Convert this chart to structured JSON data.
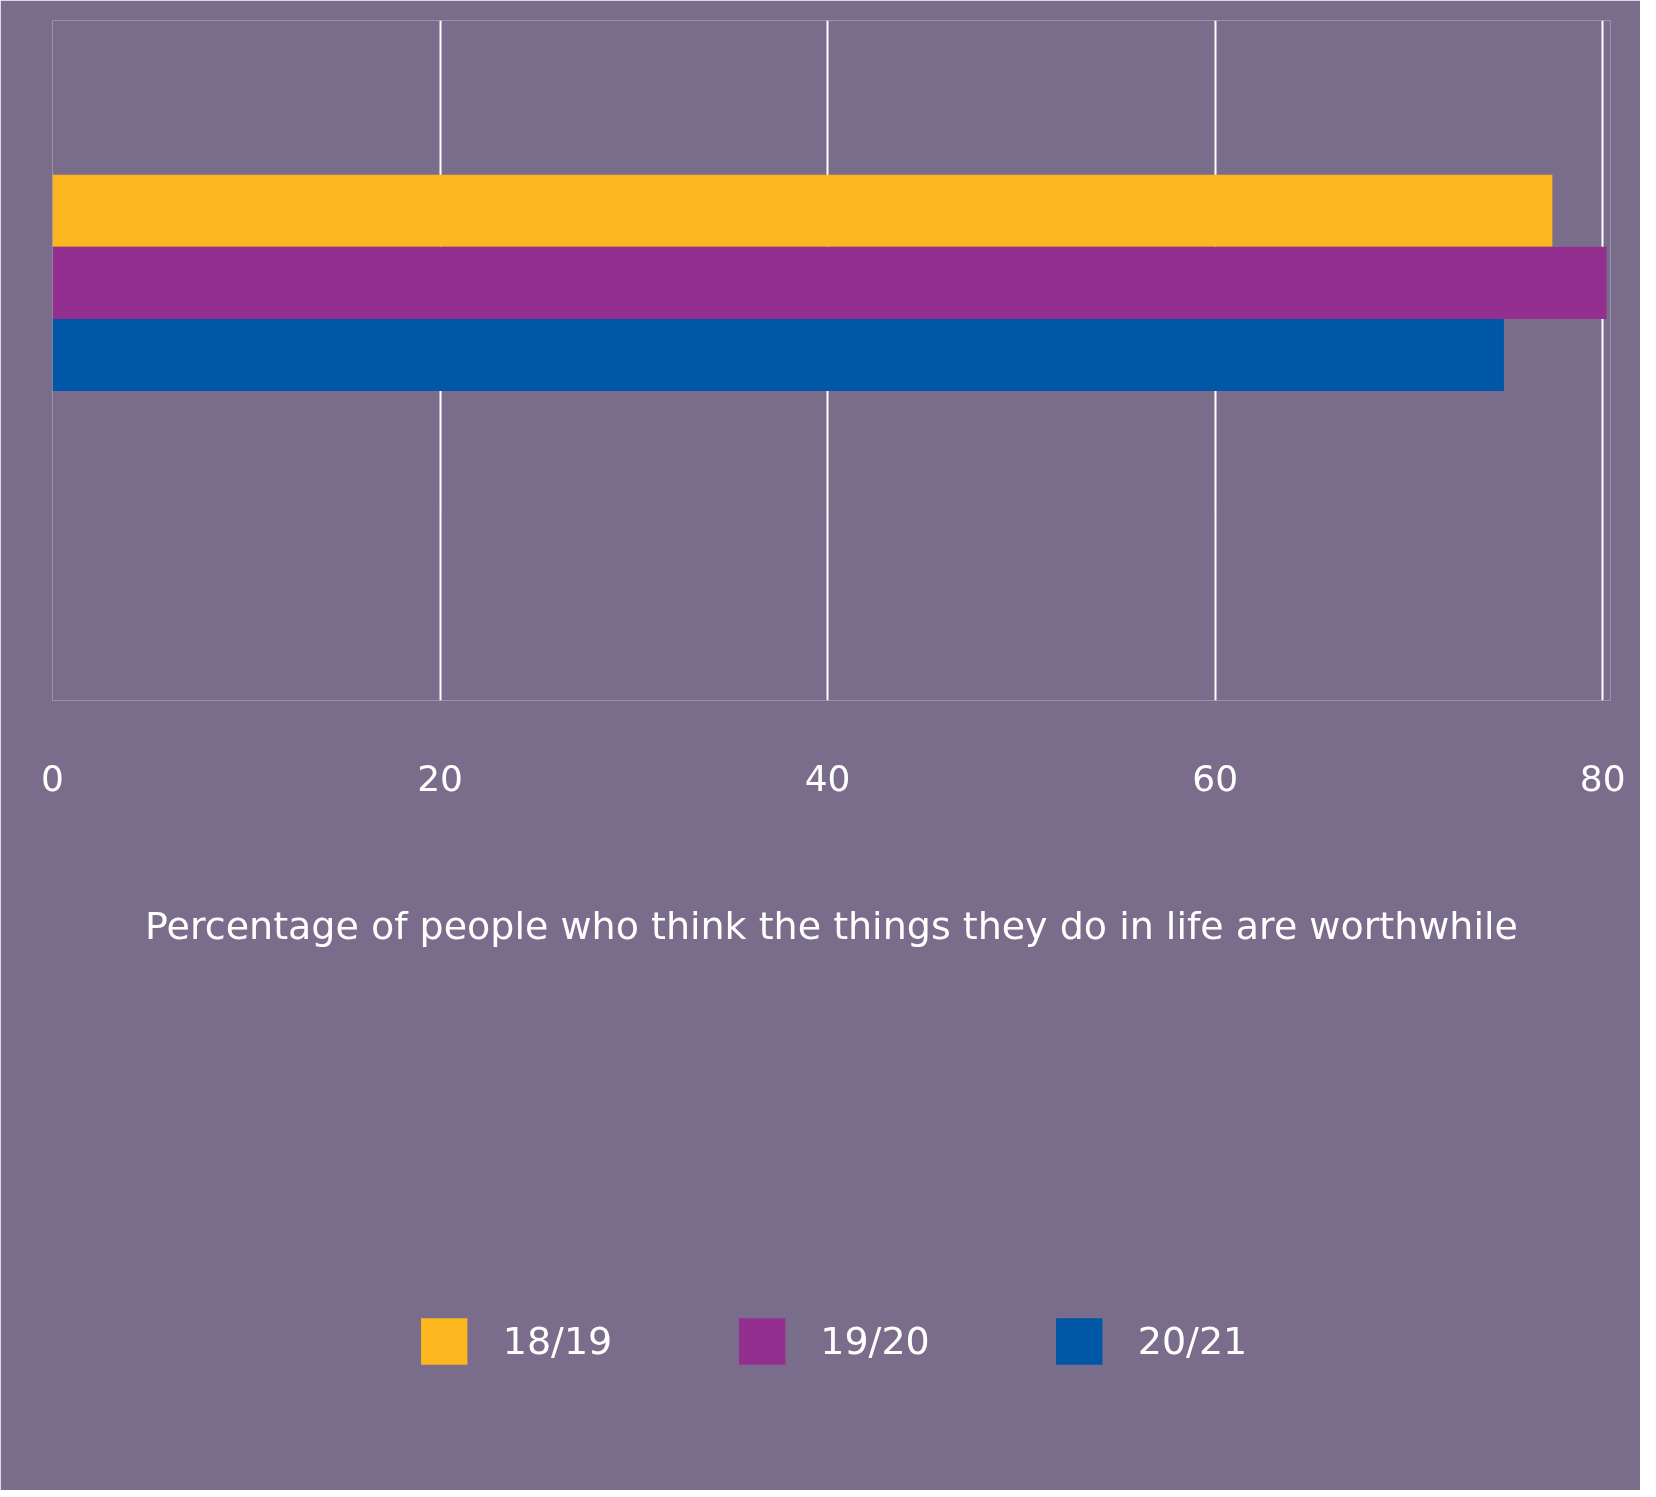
{
  "chart_data": {
    "type": "bar",
    "orientation": "horizontal",
    "categories": [
      null
    ],
    "series": [
      {
        "name": "18/19",
        "color": "#fdb71e",
        "values": [
          77.4
        ]
      },
      {
        "name": "19/20",
        "color": "#93308f",
        "values": [
          80.2
        ]
      },
      {
        "name": "20/21",
        "color": "#0057a5",
        "values": [
          74.9
        ]
      }
    ],
    "xlabel": "Percentage of people who think the things they do in life are worthwhile",
    "xlim": [
      0,
      80.4
    ],
    "xticks": [
      0,
      20,
      40,
      60,
      80
    ],
    "grid": "x",
    "legend": "bottom"
  }
}
